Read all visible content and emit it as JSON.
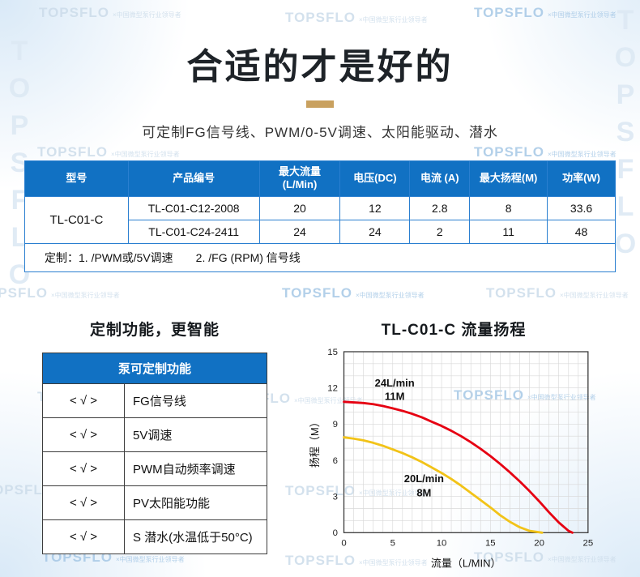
{
  "colors": {
    "brand_blue": "#1171c3",
    "accent_gold": "#c9a15f",
    "table_border": "#2a7fd0",
    "series_red": "#e60012",
    "series_yellow": "#f2c318"
  },
  "watermark": {
    "brand": "TOPSFLO",
    "tagline": "×中国微型泵行业领导者"
  },
  "header": {
    "title": "合适的才是好的",
    "subtitle": "可定制FG信号线、PWM/0-5V调速、太阳能驱动、潜水"
  },
  "spec_table": {
    "headers": [
      "型号",
      "产品编号",
      "最大流量\n(L/Min)",
      "电压(DC)",
      "电流 (A)",
      "最大扬程(M)",
      "功率(W)"
    ],
    "model": "TL-C01-C",
    "rows": [
      {
        "code": "TL-C01-C12-2008",
        "flow": "20",
        "voltage": "12",
        "current": "2.8",
        "head": "8",
        "power": "33.6"
      },
      {
        "code": "TL-C01-C24-2411",
        "flow": "24",
        "voltage": "24",
        "current": "2",
        "head": "11",
        "power": "48"
      }
    ],
    "note": "定制：1. /PWM或/5V调速　　2. /FG (RPM) 信号线"
  },
  "features": {
    "heading": "定制功能，更智能",
    "table_title": "泵可定制功能",
    "mark": "< √ >",
    "items": [
      "FG信号线",
      "5V调速",
      "PWM自动频率调速",
      "PV太阳能功能",
      "S 潜水(水温低于50°C)"
    ]
  },
  "chart_data": {
    "type": "line",
    "title": "TL-C01-C 流量扬程",
    "xlabel": "流量（L/MIN）",
    "ylabel": "扬程（M）",
    "xlim": [
      0,
      25
    ],
    "ylim": [
      0,
      15
    ],
    "xticks": [
      0,
      5,
      10,
      15,
      20,
      25
    ],
    "yticks": [
      0,
      3,
      6,
      9,
      12,
      15
    ],
    "grid": true,
    "series": [
      {
        "name": "24L/min 11M",
        "color": "#e60012",
        "points": [
          [
            0,
            10.85
          ],
          [
            1,
            10.8
          ],
          [
            2,
            10.75
          ],
          [
            3,
            10.65
          ],
          [
            4,
            10.5
          ],
          [
            5,
            10.3
          ],
          [
            6,
            10.1
          ],
          [
            7,
            9.85
          ],
          [
            8,
            9.55
          ],
          [
            9,
            9.2
          ],
          [
            10,
            8.85
          ],
          [
            11,
            8.45
          ],
          [
            12,
            8.0
          ],
          [
            13,
            7.5
          ],
          [
            14,
            6.95
          ],
          [
            15,
            6.35
          ],
          [
            16,
            5.7
          ],
          [
            17,
            5.0
          ],
          [
            18,
            4.25
          ],
          [
            19,
            3.45
          ],
          [
            20,
            2.6
          ],
          [
            21,
            1.7
          ],
          [
            22,
            0.85
          ],
          [
            23,
            0.15
          ],
          [
            23.4,
            0
          ]
        ]
      },
      {
        "name": "20L/min 8M",
        "color": "#f2c318",
        "points": [
          [
            0,
            7.9
          ],
          [
            1,
            7.8
          ],
          [
            2,
            7.65
          ],
          [
            3,
            7.45
          ],
          [
            4,
            7.2
          ],
          [
            5,
            6.9
          ],
          [
            6,
            6.6
          ],
          [
            7,
            6.25
          ],
          [
            8,
            5.85
          ],
          [
            9,
            5.4
          ],
          [
            10,
            4.95
          ],
          [
            11,
            4.45
          ],
          [
            12,
            3.9
          ],
          [
            13,
            3.3
          ],
          [
            14,
            2.7
          ],
          [
            15,
            2.1
          ],
          [
            16,
            1.45
          ],
          [
            17,
            0.9
          ],
          [
            18,
            0.45
          ],
          [
            19,
            0.15
          ],
          [
            20.3,
            0
          ]
        ]
      }
    ],
    "annotations": [
      {
        "text": "24L/min",
        "x": 5.2,
        "y": 12.1
      },
      {
        "text": "11M",
        "x": 5.2,
        "y": 11.0
      },
      {
        "text": "20L/min",
        "x": 8.2,
        "y": 4.2
      },
      {
        "text": "8M",
        "x": 8.2,
        "y": 3.0
      }
    ]
  }
}
